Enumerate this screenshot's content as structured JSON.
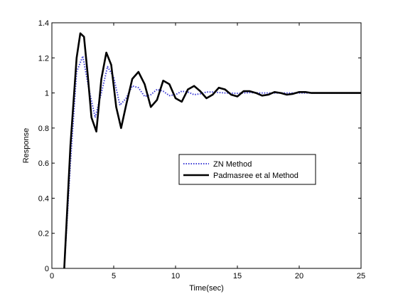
{
  "chart_data": {
    "type": "line",
    "title": "",
    "xlabel": "Time(sec)",
    "ylabel": "Response",
    "xlim": [
      0,
      25
    ],
    "ylim": [
      0,
      1.4
    ],
    "x_ticks": [
      0,
      5,
      10,
      15,
      20,
      25
    ],
    "y_ticks": [
      0,
      0.2,
      0.4,
      0.6,
      0.8,
      1,
      1.2,
      1.4
    ],
    "x_tick_labels": [
      "0",
      "5",
      "10",
      "15",
      "20",
      "25"
    ],
    "y_tick_labels": [
      "0",
      "0.2",
      "0.4",
      "0.6",
      "0.8",
      "1",
      "1.2",
      "1.4"
    ],
    "grid": false,
    "legend_position": "center-right",
    "series": [
      {
        "name": "ZN Method",
        "color": "#3b3bd6",
        "style": "dotted",
        "x": [
          1.0,
          1.5,
          2.0,
          2.5,
          3.0,
          3.5,
          4.0,
          4.5,
          5.0,
          5.5,
          6.0,
          6.5,
          7.0,
          7.5,
          8.0,
          8.5,
          9.0,
          9.5,
          10.0,
          10.5,
          11.0,
          11.5,
          12.0,
          12.5,
          13.0,
          14.0,
          15.0,
          16.0,
          17.0,
          18.0,
          19.0,
          20.0,
          21.0,
          22.0,
          23.0,
          24.0,
          25.0
        ],
        "y": [
          0.0,
          0.6,
          1.12,
          1.21,
          1.02,
          0.86,
          1.0,
          1.15,
          1.09,
          0.93,
          0.97,
          1.04,
          1.03,
          0.98,
          0.99,
          1.02,
          1.01,
          0.985,
          0.99,
          1.01,
          1.005,
          0.99,
          0.995,
          1.005,
          1.005,
          1.0,
          0.998,
          1.002,
          1.0,
          1.0,
          1.0,
          1.0,
          1.0,
          1.0,
          1.0,
          1.0,
          1.0
        ]
      },
      {
        "name": "Padmasree et al Method",
        "color": "#000000",
        "style": "solid",
        "x": [
          1.0,
          1.5,
          2.0,
          2.3,
          2.6,
          2.9,
          3.2,
          3.6,
          4.0,
          4.4,
          4.8,
          5.2,
          5.6,
          6.0,
          6.5,
          7.0,
          7.5,
          8.0,
          8.5,
          9.0,
          9.5,
          10.0,
          10.5,
          11.0,
          11.5,
          12.0,
          12.5,
          13.0,
          13.5,
          14.0,
          14.5,
          15.0,
          15.5,
          16.0,
          16.5,
          17.0,
          17.5,
          18.0,
          18.5,
          19.0,
          19.5,
          20.0,
          20.5,
          21.0,
          21.5,
          22.0,
          23.0,
          24.0,
          25.0
        ],
        "y": [
          0.0,
          0.7,
          1.2,
          1.34,
          1.32,
          1.1,
          0.86,
          0.78,
          1.08,
          1.23,
          1.16,
          0.92,
          0.8,
          0.93,
          1.08,
          1.12,
          1.05,
          0.92,
          0.96,
          1.07,
          1.05,
          0.97,
          0.95,
          1.02,
          1.04,
          1.01,
          0.97,
          0.99,
          1.03,
          1.02,
          0.99,
          0.98,
          1.01,
          1.01,
          1.0,
          0.985,
          0.99,
          1.005,
          1.0,
          0.99,
          0.995,
          1.005,
          1.005,
          1.0,
          1.0,
          1.0,
          1.0,
          1.0,
          1.0
        ]
      }
    ]
  }
}
